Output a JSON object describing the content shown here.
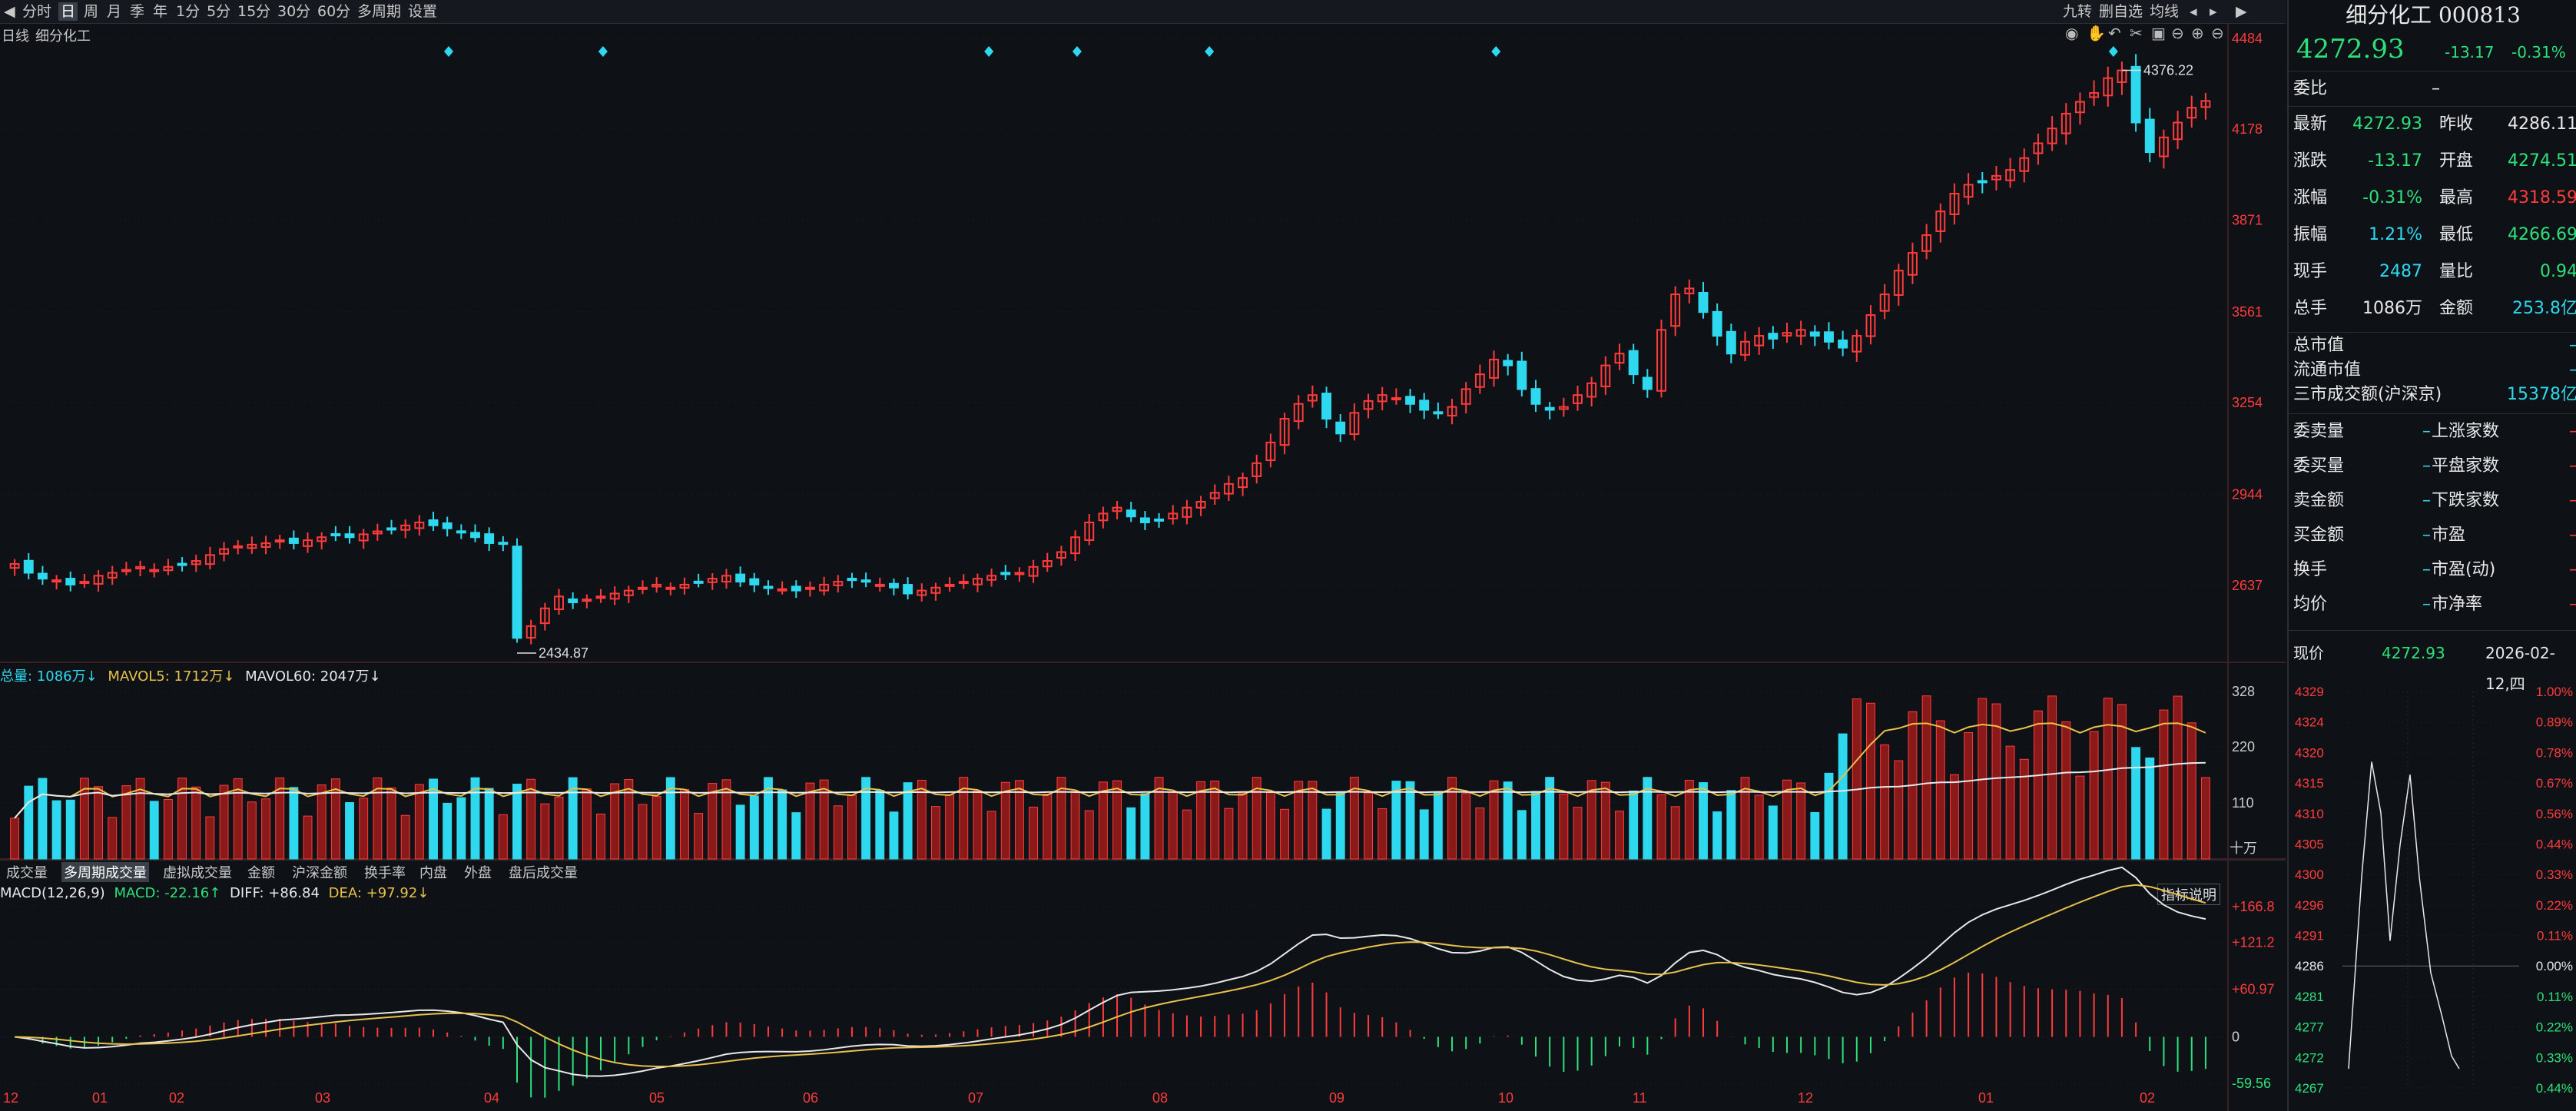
{
  "toolbar": {
    "tabs": [
      "分时",
      "日",
      "周",
      "月",
      "季",
      "年",
      "1分",
      "5分",
      "15分",
      "30分",
      "60分",
      "多周期",
      "设置"
    ],
    "active_tab": "日",
    "right_items": [
      "九转",
      "删自选",
      "均线"
    ]
  },
  "chart": {
    "period_label": "日线",
    "name": "细分化工",
    "price_axis": [
      "4484",
      "4178",
      "3871",
      "3561",
      "3254",
      "2944",
      "2637"
    ],
    "high_label": "4376.22",
    "low_label": "2434.87",
    "volume_header": {
      "total": "总量: 1086万↓",
      "mavol5": "MAVOL5: 1712万↓",
      "mavol60": "MAVOL60: 2047万↓"
    },
    "volume_axis": [
      "328",
      "220",
      "110"
    ],
    "volume_unit": "十万",
    "sub_tabs": [
      "成交量",
      "多周期成交量",
      "虚拟成交量",
      "金额",
      "沪深金额",
      "换手率",
      "内盘",
      "外盘",
      "盘后成交量"
    ],
    "macd_header": {
      "title": "MACD(12,26,9)",
      "macd": "MACD: -22.16↑",
      "diff": "DIFF: +86.84",
      "dea": "DEA: +97.92↓"
    },
    "indicator_button": "指标说明",
    "macd_axis": [
      "+166.8",
      "+121.2",
      "+60.97",
      "0",
      "-59.56"
    ],
    "month_labels": [
      "12",
      "01",
      "02",
      "03",
      "04",
      "05",
      "06",
      "07",
      "08",
      "09",
      "10",
      "11",
      "12",
      "01",
      "02"
    ]
  },
  "chart_data": [
    {
      "type": "candlestick",
      "title": "细分化工 日线",
      "ylim": [
        2434.87,
        4484
      ],
      "annotations": {
        "high": 4376.22,
        "low": 2434.87
      },
      "close_series": [
        2710,
        2680,
        2660,
        2655,
        2640,
        2650,
        2670,
        2680,
        2690,
        2700,
        2690,
        2700,
        2710,
        2720,
        2740,
        2760,
        2770,
        2775,
        2780,
        2790,
        2780,
        2790,
        2800,
        2810,
        2800,
        2810,
        2820,
        2830,
        2840,
        2850,
        2840,
        2830,
        2820,
        2800,
        2780,
        2780,
        2460,
        2500,
        2560,
        2600,
        2580,
        2590,
        2600,
        2610,
        2620,
        2630,
        2640,
        2630,
        2640,
        2650,
        2660,
        2670,
        2650,
        2640,
        2630,
        2625,
        2620,
        2630,
        2640,
        2650,
        2655,
        2650,
        2640,
        2630,
        2610,
        2620,
        2630,
        2640,
        2650,
        2660,
        2670,
        2675,
        2680,
        2700,
        2720,
        2750,
        2800,
        2850,
        2880,
        2900,
        2870,
        2850,
        2860,
        2880,
        2900,
        2920,
        2950,
        2980,
        3000,
        3050,
        3120,
        3200,
        3250,
        3280,
        3200,
        3150,
        3220,
        3260,
        3280,
        3270,
        3250,
        3230,
        3220,
        3240,
        3300,
        3350,
        3400,
        3380,
        3300,
        3250,
        3230,
        3240,
        3280,
        3320,
        3380,
        3420,
        3350,
        3300,
        3500,
        3620,
        3640,
        3560,
        3480,
        3420,
        3460,
        3480,
        3470,
        3490,
        3500,
        3480,
        3460,
        3440,
        3480,
        3550,
        3620,
        3700,
        3760,
        3820,
        3900,
        3960,
        3990,
        4000,
        4020,
        4040,
        4080,
        4130,
        4180,
        4230,
        4270,
        4300,
        4350,
        4376,
        4200,
        4100,
        4150,
        4200,
        4250,
        4272.93
      ]
    },
    {
      "type": "bar",
      "title": "成交量",
      "series": [
        {
          "name": "MAVOL5",
          "last": 1712
        },
        {
          "name": "MAVOL60",
          "last": 2047
        }
      ],
      "ylim": [
        0,
        328
      ],
      "last_value": 1086,
      "unit": "十万"
    },
    {
      "type": "line",
      "title": "MACD(12,26,9)",
      "series": [
        {
          "name": "DIFF",
          "last": 86.84
        },
        {
          "name": "DEA",
          "last": 97.92
        },
        {
          "name": "MACD",
          "last": -22.16
        }
      ],
      "ylim": [
        -59.56,
        166.8
      ]
    },
    {
      "type": "line",
      "title": "分时",
      "ylim": [
        4267,
        4329
      ],
      "yticks": [
        "4329",
        "4324",
        "4320",
        "4315",
        "4310",
        "4305",
        "4300",
        "4296",
        "4291",
        "4286",
        "4281",
        "4277",
        "4272",
        "4267"
      ],
      "pct_ticks": [
        "1.00%",
        "0.89%",
        "0.78%",
        "0.67%",
        "0.56%",
        "0.44%",
        "0.33%",
        "0.22%",
        "0.11%",
        "0.00%",
        "0.11%",
        "0.22%",
        "0.33%",
        "0.44%"
      ]
    }
  ],
  "panel": {
    "title": "细分化工 000813",
    "price": "4272.93",
    "change": "-13.17",
    "change_pct": "-0.31%",
    "weibi_label": "委比",
    "weibi_value": "–",
    "rows": [
      {
        "l1": "最新",
        "v1": "4272.93",
        "l2": "昨收",
        "v2": "4286.11"
      },
      {
        "l1": "涨跌",
        "v1": "-13.17",
        "l2": "开盘",
        "v2": "4274.51"
      },
      {
        "l1": "涨幅",
        "v1": "-0.31%",
        "l2": "最高",
        "v2": "4318.59"
      },
      {
        "l1": "振幅",
        "v1": "1.21%",
        "l2": "最低",
        "v2": "4266.69"
      },
      {
        "l1": "现手",
        "v1": "2487",
        "l2": "量比",
        "v2": "0.94"
      },
      {
        "l1": "总手",
        "v1": "1086万",
        "l2": "金额",
        "v2": "253.8亿"
      }
    ],
    "market_rows": [
      {
        "l": "总市值",
        "v": "–"
      },
      {
        "l": "流通市值",
        "v": "–"
      },
      {
        "l": "三市成交额(沪深京)",
        "v": "15378亿"
      }
    ],
    "stat_rows": [
      {
        "l1": "委卖量",
        "v1": "–",
        "l2": "上涨家数",
        "v2": "–"
      },
      {
        "l1": "委买量",
        "v1": "–",
        "l2": "平盘家数",
        "v2": "–"
      },
      {
        "l1": "卖金额",
        "v1": "–",
        "l2": "下跌家数",
        "v2": "–"
      },
      {
        "l1": "买金额",
        "v1": "–",
        "l2": "市盈",
        "v2": "–"
      },
      {
        "l1": "换手",
        "v1": "–",
        "l2": "市盈(动)",
        "v2": "–"
      },
      {
        "l1": "均价",
        "v1": "–",
        "l2": "市净率",
        "v2": "–"
      }
    ],
    "now_label": "现价",
    "now_value": "4272.93",
    "date": "2026-02-12,四"
  },
  "colors": {
    "up": "#ff3b3b",
    "down": "#2ed8ee",
    "bg": "#0e1217",
    "grid": "#2a1414",
    "ma_white": "#e8e8e8",
    "ma_yellow": "#e8c04a"
  }
}
